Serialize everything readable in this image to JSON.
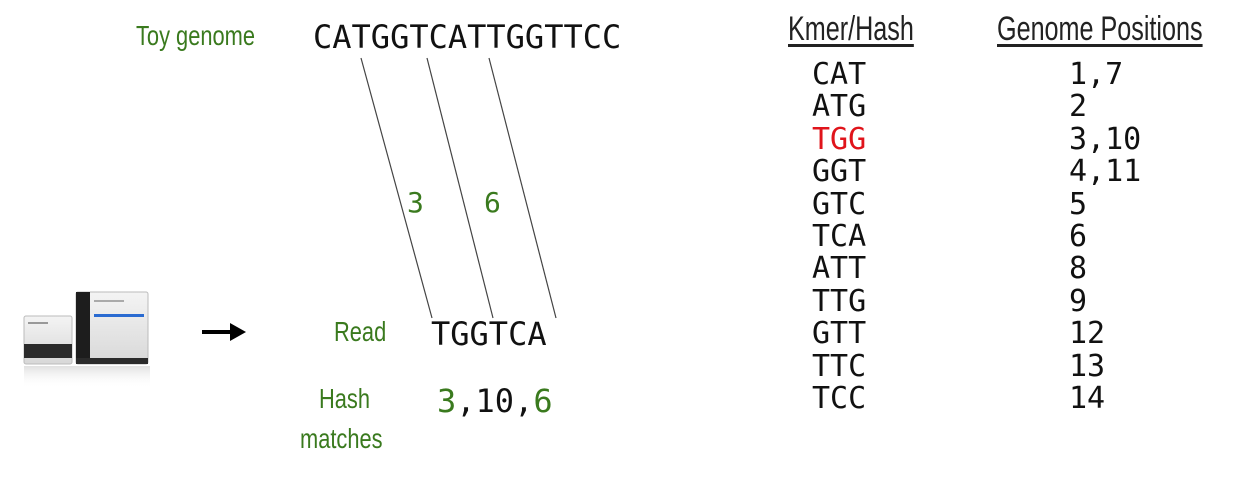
{
  "labels": {
    "toy_genome": "Toy genome",
    "read": "Read",
    "hash_line1": "Hash",
    "hash_line2": "matches"
  },
  "genome_sequence": "CATGGTCATTGGTTCC",
  "read_sequence": "TGGTCA",
  "offset_labels": [
    "3",
    "6"
  ],
  "hash_matches": {
    "first": "3",
    "sep1": ",",
    "middle": "10",
    "sep2": ",",
    "last": "6"
  },
  "table": {
    "headers": {
      "kmer": "Kmer/Hash",
      "positions": "Genome Positions"
    },
    "rows": [
      {
        "kmer": "CAT",
        "positions": "1,7"
      },
      {
        "kmer": "ATG",
        "positions": "2"
      },
      {
        "kmer": "TGG",
        "positions": "3,10",
        "highlight": true
      },
      {
        "kmer": "GGT",
        "positions": "4,11"
      },
      {
        "kmer": "GTC",
        "positions": "5"
      },
      {
        "kmer": "TCA",
        "positions": "6"
      },
      {
        "kmer": "ATT",
        "positions": "8"
      },
      {
        "kmer": "TTG",
        "positions": "9"
      },
      {
        "kmer": "GTT",
        "positions": "12"
      },
      {
        "kmer": "TTC",
        "positions": "13"
      },
      {
        "kmer": "TCC",
        "positions": "14"
      }
    ]
  },
  "colors": {
    "label_green": "#3a7a1e",
    "highlight_red": "#e0141b",
    "text": "#111111"
  },
  "icons": {
    "sequencer": "sequencer-machine-icon",
    "arrow": "right-arrow-icon"
  }
}
